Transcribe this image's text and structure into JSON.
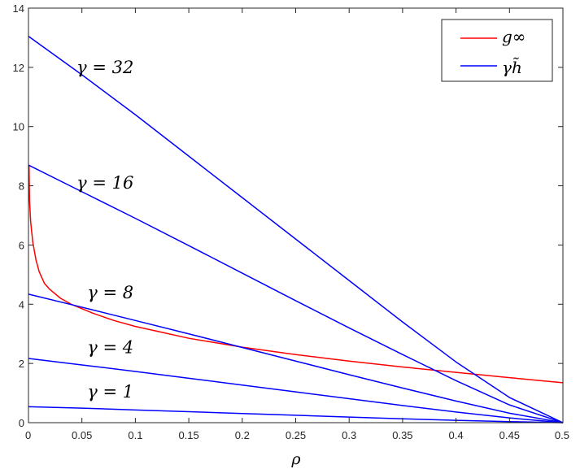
{
  "chart_data": {
    "type": "line",
    "title": "",
    "xlabel": "ρ",
    "ylabel": "",
    "xlim": [
      0,
      0.5
    ],
    "ylim": [
      0,
      14
    ],
    "x_ticks": [
      0,
      0.05,
      0.1,
      0.15,
      0.2,
      0.25,
      0.3,
      0.35,
      0.4,
      0.45,
      0.5
    ],
    "x_tick_labels": [
      "0",
      "0.05",
      "0.1",
      "0.15",
      "0.2",
      "0.25",
      "0.3",
      "0.35",
      "0.4",
      "0.45",
      "0.5"
    ],
    "y_ticks": [
      0,
      2,
      4,
      6,
      8,
      10,
      12,
      14
    ],
    "y_tick_labels": [
      "0",
      "2",
      "4",
      "6",
      "8",
      "10",
      "12",
      "14"
    ],
    "grid": false,
    "legend_position": "top-right",
    "legend": [
      {
        "label": "g∞",
        "color": "#ff0000"
      },
      {
        "label": "γh̃",
        "color": "#0000ff"
      }
    ],
    "series": [
      {
        "name": "g∞",
        "color": "#ff0000",
        "x": [
          0.0005,
          0.001,
          0.002,
          0.004,
          0.007,
          0.01,
          0.015,
          0.02,
          0.03,
          0.04,
          0.05,
          0.06,
          0.08,
          0.1,
          0.125,
          0.15,
          0.175,
          0.2,
          0.25,
          0.3,
          0.35,
          0.4,
          0.45,
          0.5
        ],
        "y": [
          8.7,
          7.5,
          6.8,
          6.1,
          5.5,
          5.1,
          4.7,
          4.5,
          4.2,
          4.0,
          3.85,
          3.7,
          3.45,
          3.25,
          3.05,
          2.85,
          2.7,
          2.55,
          2.3,
          2.08,
          1.88,
          1.7,
          1.52,
          1.35
        ]
      },
      {
        "name": "γ = 1",
        "color": "#0000ff",
        "x": [
          0,
          0.05,
          0.1,
          0.15,
          0.2,
          0.25,
          0.3,
          0.35,
          0.4,
          0.45,
          0.5
        ],
        "y": [
          0.54,
          0.49,
          0.43,
          0.37,
          0.31,
          0.25,
          0.19,
          0.13,
          0.08,
          0.035,
          0
        ]
      },
      {
        "name": "γ = 4",
        "color": "#0000ff",
        "x": [
          0,
          0.05,
          0.1,
          0.15,
          0.2,
          0.25,
          0.3,
          0.35,
          0.4,
          0.45,
          0.5
        ],
        "y": [
          2.17,
          1.95,
          1.73,
          1.5,
          1.27,
          1.04,
          0.81,
          0.58,
          0.36,
          0.16,
          0
        ]
      },
      {
        "name": "γ = 8",
        "color": "#0000ff",
        "x": [
          0,
          0.05,
          0.1,
          0.15,
          0.2,
          0.25,
          0.3,
          0.35,
          0.4,
          0.45,
          0.5
        ],
        "y": [
          4.34,
          3.9,
          3.45,
          3.0,
          2.54,
          2.08,
          1.62,
          1.17,
          0.73,
          0.32,
          0
        ]
      },
      {
        "name": "γ = 16",
        "color": "#0000ff",
        "x": [
          0,
          0.05,
          0.1,
          0.15,
          0.2,
          0.25,
          0.3,
          0.35,
          0.4,
          0.45,
          0.5
        ],
        "y": [
          8.7,
          7.8,
          6.9,
          5.98,
          5.05,
          4.12,
          3.2,
          2.3,
          1.42,
          0.6,
          0
        ]
      },
      {
        "name": "γ = 32",
        "color": "#0000ff",
        "x": [
          0,
          0.05,
          0.1,
          0.15,
          0.2,
          0.25,
          0.3,
          0.35,
          0.4,
          0.45,
          0.5
        ],
        "y": [
          13.05,
          11.75,
          10.4,
          9.0,
          7.6,
          6.2,
          4.8,
          3.4,
          2.05,
          0.85,
          0
        ]
      }
    ],
    "annotations": [
      {
        "text": "γ = 32",
        "x": 0.045,
        "y": 11.8
      },
      {
        "text": "γ = 16",
        "x": 0.045,
        "y": 7.9
      },
      {
        "text": "γ = 8",
        "x": 0.055,
        "y": 4.2
      },
      {
        "text": "γ = 4",
        "x": 0.055,
        "y": 2.35
      },
      {
        "text": "γ = 1",
        "x": 0.055,
        "y": 0.85
      }
    ]
  }
}
